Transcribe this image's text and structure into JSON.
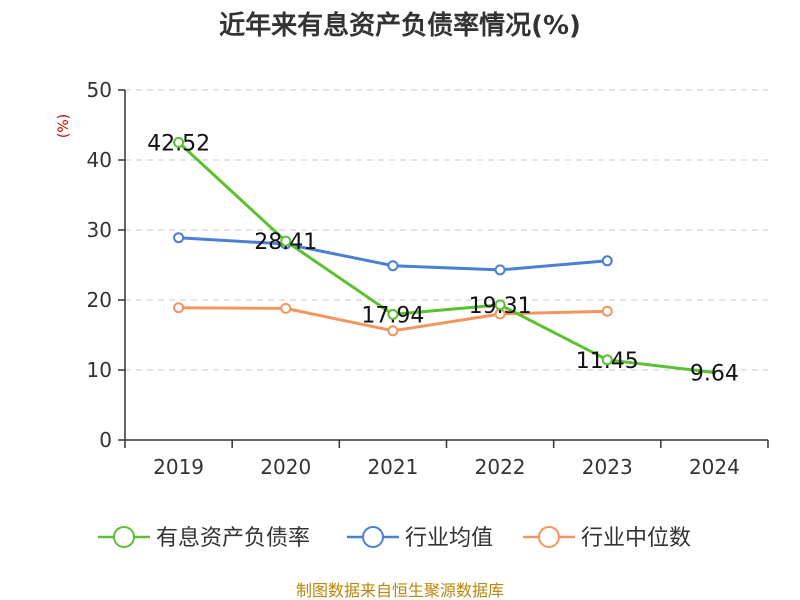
{
  "chart_data": {
    "type": "line",
    "title": "近年来有息资产负债率情况(%)",
    "ylabel": "(%)",
    "xlabel": "",
    "categories": [
      "2019",
      "2020",
      "2021",
      "2022",
      "2023",
      "2024"
    ],
    "ylim": [
      0,
      50
    ],
    "yticks": [
      0,
      10,
      20,
      30,
      40,
      50
    ],
    "grid": true,
    "legend_position": "bottom",
    "series": [
      {
        "name": "有息资产负债率",
        "color": "#5cc130",
        "values": [
          42.52,
          28.41,
          17.94,
          19.31,
          11.45,
          9.64
        ],
        "labels": [
          "42.52",
          "28.41",
          "17.94",
          "19.31",
          "11.45",
          "9.64"
        ]
      },
      {
        "name": "行业均值",
        "color": "#4a7fd6",
        "values": [
          28.9,
          28.0,
          24.9,
          24.3,
          25.6,
          null
        ]
      },
      {
        "name": "行业中位数",
        "color": "#f4955f",
        "values": [
          18.9,
          18.8,
          15.6,
          18.0,
          18.4,
          null
        ]
      }
    ],
    "source": "制图数据来自恒生聚源数据库"
  }
}
